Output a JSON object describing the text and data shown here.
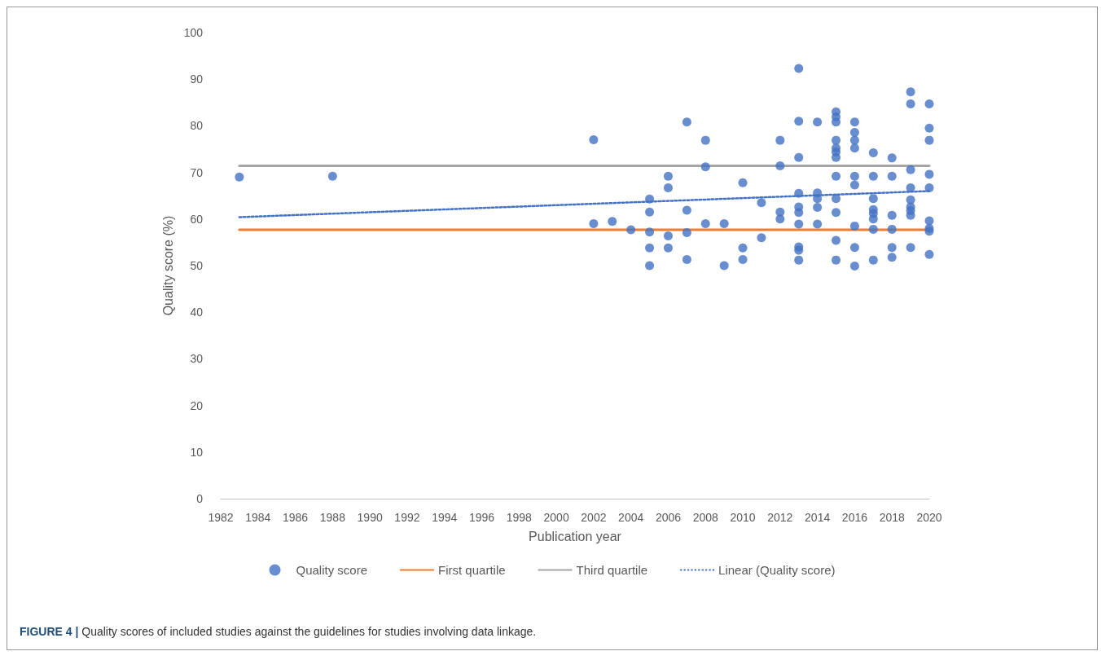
{
  "chart_data": {
    "type": "scatter",
    "xlabel": "Publication year",
    "ylabel": "Quality score (%)",
    "annotations": [
      "FIGURE 4 | Quality scores of included studies against the guidelines for studies involving data linkage."
    ],
    "xlim": [
      1982,
      2020
    ],
    "xticks": [
      1982,
      1984,
      1986,
      1988,
      1990,
      1992,
      1994,
      1996,
      1998,
      2000,
      2002,
      2004,
      2006,
      2008,
      2010,
      2012,
      2014,
      2016,
      2018,
      2020
    ],
    "ylim": [
      0,
      100
    ],
    "yticks": [
      0,
      10,
      20,
      30,
      40,
      50,
      60,
      70,
      80,
      90,
      100
    ],
    "grid": false,
    "legend": "bottom",
    "series": [
      {
        "name": "Quality score",
        "marker": "circle",
        "color": "#4472c4",
        "x": [
          1983,
          1988,
          2002,
          2002,
          2003,
          2004,
          2005,
          2005,
          2005,
          2005,
          2005,
          2006,
          2006,
          2006,
          2006,
          2007,
          2007,
          2007,
          2007,
          2008,
          2008,
          2008,
          2009,
          2009,
          2010,
          2010,
          2010,
          2011,
          2011,
          2012,
          2012,
          2012,
          2012,
          2013,
          2013,
          2013,
          2013,
          2013,
          2013,
          2013,
          2013,
          2013,
          2013,
          2014,
          2014,
          2014,
          2014,
          2014,
          2015,
          2015,
          2015,
          2015,
          2015,
          2015,
          2015,
          2015,
          2015,
          2015,
          2015,
          2015,
          2016,
          2016,
          2016,
          2016,
          2016,
          2016,
          2016,
          2016,
          2016,
          2017,
          2017,
          2017,
          2017,
          2017,
          2017,
          2017,
          2017,
          2018,
          2018,
          2018,
          2018,
          2018,
          2018,
          2019,
          2019,
          2019,
          2019,
          2019,
          2019,
          2019,
          2019,
          2019,
          2020,
          2020,
          2020,
          2020,
          2020,
          2020,
          2020,
          2020,
          2020
        ],
        "values": [
          69,
          69.2,
          77,
          59,
          59.5,
          57.7,
          64.3,
          61.5,
          57.2,
          53.8,
          50,
          69.2,
          66.7,
          56.4,
          53.8,
          80.8,
          61.9,
          57.1,
          51.3,
          76.9,
          71.2,
          59,
          59,
          50,
          67.8,
          53.8,
          51.3,
          63.5,
          56,
          76.9,
          71.4,
          61.5,
          60,
          92.3,
          81,
          73.2,
          65.5,
          62.6,
          61.4,
          58.9,
          54,
          53.3,
          51.2,
          80.8,
          65.6,
          64.4,
          62.5,
          58.9,
          83,
          81.9,
          80.8,
          76.9,
          75.2,
          74.4,
          73.2,
          69.2,
          64.4,
          61.4,
          55.4,
          51.2,
          80.8,
          78.6,
          76.9,
          75.2,
          69.2,
          67.3,
          58.5,
          53.9,
          49.9,
          74.2,
          69.2,
          64.4,
          62,
          61.2,
          60,
          57.8,
          51.2,
          73.1,
          69.2,
          60.8,
          57.8,
          53.9,
          51.8,
          87.3,
          84.7,
          70.6,
          66.7,
          64.1,
          62.6,
          61.8,
          60.8,
          53.9,
          84.7,
          79.5,
          76.9,
          69.6,
          66.7,
          59.6,
          58,
          57.4,
          52.4
        ]
      },
      {
        "name": "First quartile",
        "type": "line",
        "marker": "none",
        "line_style": "solid",
        "color": "#ed7d31",
        "x": [
          1983,
          2020
        ],
        "values": [
          57.7,
          57.7
        ]
      },
      {
        "name": "Third quartile",
        "type": "line",
        "marker": "none",
        "line_style": "solid",
        "color": "#a5a5a5",
        "x": [
          1983,
          2020
        ],
        "values": [
          71.4,
          71.4
        ]
      },
      {
        "name": "Linear (Quality score)",
        "type": "line",
        "marker": "none",
        "line_style": "dotted",
        "color": "#4472c4",
        "x": [
          1983,
          2020
        ],
        "values": [
          60.4,
          66
        ]
      }
    ]
  }
}
